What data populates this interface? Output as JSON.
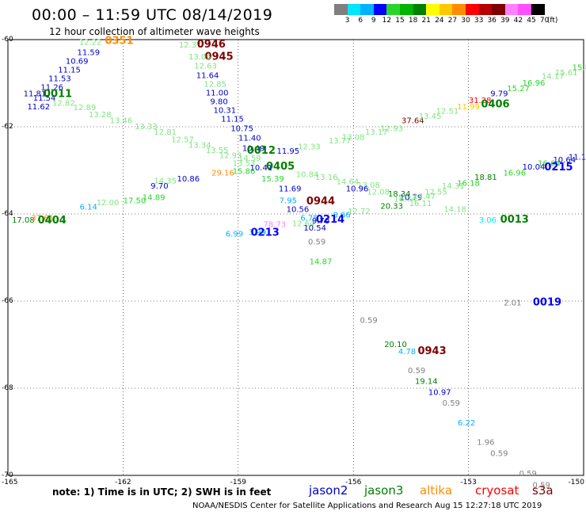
{
  "header": {
    "title": "00:00 – 11:59 UTC 08/14/2019",
    "subtitle": "12 hour collection of altimeter wave heights"
  },
  "legend": {
    "colors": [
      "#7f7f7f",
      "#00e5ff",
      "#00b2ff",
      "#0000ff",
      "#2bd42b",
      "#00b400",
      "#008000",
      "#ffff00",
      "#ffc800",
      "#ff8c00",
      "#ff0000",
      "#b40000",
      "#800000",
      "#ff80ff",
      "#ff4dff",
      "#000000"
    ],
    "labels": [
      "3",
      "6",
      "9",
      "12",
      "15",
      "18",
      "21",
      "24",
      "27",
      "30",
      "33",
      "36",
      "39",
      "42",
      "45",
      "70",
      "(ft)"
    ]
  },
  "axes": {
    "lat_labels": [
      "-60",
      "-62",
      "-64",
      "-66",
      "-68",
      "-70"
    ],
    "lon_labels": [
      "-165",
      "-162",
      "-159",
      "-156",
      "-153",
      "-150"
    ]
  },
  "chart_data": {
    "type": "scatter",
    "xlim": [
      -165,
      -150
    ],
    "ylim": [
      -70,
      -60
    ],
    "labels": [
      {
        "t": "0351",
        "lon": -162.1,
        "lat": -60.1,
        "c": "#ff8c00",
        "b": true
      },
      {
        "t": "12.22",
        "lon": -162.85,
        "lat": -60.12,
        "c": "#7fe57f"
      },
      {
        "t": "11.59",
        "lon": -162.9,
        "lat": -60.35,
        "c": "#0000cc"
      },
      {
        "t": "10.69",
        "lon": -163.2,
        "lat": -60.55,
        "c": "#0000cc"
      },
      {
        "t": "11.15",
        "lon": -163.4,
        "lat": -60.75,
        "c": "#0000cc"
      },
      {
        "t": "11.53",
        "lon": -163.65,
        "lat": -60.95,
        "c": "#0000cc"
      },
      {
        "t": "11.26",
        "lon": -163.85,
        "lat": -61.15,
        "c": "#0000cc"
      },
      {
        "t": "11.81",
        "lon": -164.3,
        "lat": -61.3,
        "c": "#0000cc"
      },
      {
        "t": "11.54",
        "lon": -164.05,
        "lat": -61.4,
        "c": "#0000cc"
      },
      {
        "t": "0011",
        "lon": -163.7,
        "lat": -61.32,
        "c": "#008000",
        "b": true
      },
      {
        "t": "11.62",
        "lon": -164.2,
        "lat": -61.6,
        "c": "#0000cc"
      },
      {
        "t": "12.82",
        "lon": -163.55,
        "lat": -61.52,
        "c": "#7fe57f"
      },
      {
        "t": "12.89",
        "lon": -163.0,
        "lat": -61.62,
        "c": "#7fe57f"
      },
      {
        "t": "13.28",
        "lon": -162.6,
        "lat": -61.78,
        "c": "#7fe57f"
      },
      {
        "t": "13.46",
        "lon": -162.05,
        "lat": -61.92,
        "c": "#7fe57f"
      },
      {
        "t": "13.33",
        "lon": -161.4,
        "lat": -62.05,
        "c": "#7fe57f"
      },
      {
        "t": "12.81",
        "lon": -160.9,
        "lat": -62.18,
        "c": "#7fe57f"
      },
      {
        "t": "12.57",
        "lon": -160.45,
        "lat": -62.35,
        "c": "#7fe57f"
      },
      {
        "t": "13.34",
        "lon": -160.0,
        "lat": -62.48,
        "c": "#7fe57f"
      },
      {
        "t": "13.55",
        "lon": -159.55,
        "lat": -62.6,
        "c": "#7fe57f"
      },
      {
        "t": "12.93",
        "lon": -159.2,
        "lat": -62.72,
        "c": "#7fe57f"
      },
      {
        "t": "14.59",
        "lon": -158.7,
        "lat": -62.78,
        "c": "#7fe57f"
      },
      {
        "t": "12.37",
        "lon": -160.25,
        "lat": -60.18,
        "c": "#7fe57f"
      },
      {
        "t": "0946",
        "lon": -159.7,
        "lat": -60.18,
        "c": "#800000",
        "b": true
      },
      {
        "t": "0945",
        "lon": -159.5,
        "lat": -60.46,
        "c": "#800000",
        "b": true
      },
      {
        "t": "13.05",
        "lon": -160.0,
        "lat": -60.45,
        "c": "#7fe57f"
      },
      {
        "t": "12.63",
        "lon": -159.85,
        "lat": -60.66,
        "c": "#7fe57f"
      },
      {
        "t": "11.64",
        "lon": -159.8,
        "lat": -60.88,
        "c": "#0000cc"
      },
      {
        "t": "12.85",
        "lon": -159.6,
        "lat": -61.08,
        "c": "#7fe57f"
      },
      {
        "t": "11.00",
        "lon": -159.55,
        "lat": -61.28,
        "c": "#0000cc"
      },
      {
        "t": "9.80",
        "lon": -159.5,
        "lat": -61.48,
        "c": "#0000cc"
      },
      {
        "t": "10.31",
        "lon": -159.35,
        "lat": -61.68,
        "c": "#0000cc"
      },
      {
        "t": "11.15",
        "lon": -159.15,
        "lat": -61.88,
        "c": "#0000cc"
      },
      {
        "t": "10.75",
        "lon": -158.9,
        "lat": -62.1,
        "c": "#0000cc"
      },
      {
        "t": "11.40",
        "lon": -158.7,
        "lat": -62.32,
        "c": "#0000cc"
      },
      {
        "t": "10.49",
        "lon": -158.6,
        "lat": -62.55,
        "c": "#0000cc"
      },
      {
        "t": "0012",
        "lon": -158.4,
        "lat": -62.62,
        "c": "#008000",
        "b": true
      },
      {
        "t": "11.95",
        "lon": -157.7,
        "lat": -62.62,
        "c": "#0000cc"
      },
      {
        "t": "12.33",
        "lon": -157.15,
        "lat": -62.52,
        "c": "#7fe57f"
      },
      {
        "t": "13.77",
        "lon": -156.35,
        "lat": -62.38,
        "c": "#7fe57f"
      },
      {
        "t": "13.08",
        "lon": -156.0,
        "lat": -62.3,
        "c": "#7fe57f"
      },
      {
        "t": "13.17",
        "lon": -155.4,
        "lat": -62.18,
        "c": "#7fe57f"
      },
      {
        "t": "12.93",
        "lon": -155.0,
        "lat": -62.1,
        "c": "#7fe57f"
      },
      {
        "t": "37.64",
        "lon": -154.45,
        "lat": -61.92,
        "c": "#800000"
      },
      {
        "t": "13.45",
        "lon": -154.0,
        "lat": -61.82,
        "c": "#7fe57f"
      },
      {
        "t": "12.51",
        "lon": -153.55,
        "lat": -61.7,
        "c": "#7fe57f"
      },
      {
        "t": "11.99",
        "lon": -153.0,
        "lat": -61.6,
        "c": "#ffc800"
      },
      {
        "t": "31.28",
        "lon": -152.7,
        "lat": -61.45,
        "c": "#ff0000"
      },
      {
        "t": "0406",
        "lon": -152.3,
        "lat": -61.55,
        "c": "#008000",
        "b": true
      },
      {
        "t": "9.79",
        "lon": -152.2,
        "lat": -61.3,
        "c": "#0000cc"
      },
      {
        "t": "15.27",
        "lon": -151.7,
        "lat": -61.18,
        "c": "#2bd42b"
      },
      {
        "t": "16.96",
        "lon": -151.3,
        "lat": -61.05,
        "c": "#2bd42b"
      },
      {
        "t": "14.17",
        "lon": -150.8,
        "lat": -60.9,
        "c": "#7fe57f"
      },
      {
        "t": "15.61",
        "lon": -150.45,
        "lat": -60.82,
        "c": "#7fe57f"
      },
      {
        "t": "15.80",
        "lon": -150.0,
        "lat": -60.7,
        "c": "#2bd42b"
      },
      {
        "t": "18",
        "lon": -149.7,
        "lat": -60.58,
        "c": "#2bd42b"
      },
      {
        "t": "13.53",
        "lon": -158.85,
        "lat": -62.9,
        "c": "#7fe57f"
      },
      {
        "t": "0405",
        "lon": -157.9,
        "lat": -62.98,
        "c": "#008000",
        "b": true
      },
      {
        "t": "10.41",
        "lon": -158.4,
        "lat": -63.0,
        "c": "#0000cc"
      },
      {
        "t": "15.86",
        "lon": -158.85,
        "lat": -63.08,
        "c": "#2bd42b"
      },
      {
        "t": "29.16",
        "lon": -159.4,
        "lat": -63.12,
        "c": "#ff8c00"
      },
      {
        "t": "15.39",
        "lon": -158.1,
        "lat": -63.25,
        "c": "#2bd42b"
      },
      {
        "t": "10.86",
        "lon": -160.3,
        "lat": -63.25,
        "c": "#0000cc"
      },
      {
        "t": "14.35",
        "lon": -160.9,
        "lat": -63.3,
        "c": "#7fe57f"
      },
      {
        "t": "9.70",
        "lon": -161.05,
        "lat": -63.42,
        "c": "#0000cc"
      },
      {
        "t": "10.84",
        "lon": -157.2,
        "lat": -63.15,
        "c": "#7fe57f"
      },
      {
        "t": "13.16",
        "lon": -156.7,
        "lat": -63.22,
        "c": "#7fe57f"
      },
      {
        "t": "14.64",
        "lon": -156.15,
        "lat": -63.32,
        "c": "#7fe57f"
      },
      {
        "t": "13.08",
        "lon": -155.6,
        "lat": -63.4,
        "c": "#7fe57f"
      },
      {
        "t": "11.69",
        "lon": -157.65,
        "lat": -63.48,
        "c": "#0000cc"
      },
      {
        "t": "10.96",
        "lon": -155.9,
        "lat": -63.48,
        "c": "#0000cc"
      },
      {
        "t": "12.08",
        "lon": -155.35,
        "lat": -63.55,
        "c": "#7fe57f"
      },
      {
        "t": "18.34",
        "lon": -154.8,
        "lat": -63.6,
        "c": "#008000"
      },
      {
        "t": "10.79",
        "lon": -154.5,
        "lat": -63.68,
        "c": "#0000cc"
      },
      {
        "t": "14.47",
        "lon": -154.15,
        "lat": -63.65,
        "c": "#7fe57f"
      },
      {
        "t": "12.55",
        "lon": -153.85,
        "lat": -63.55,
        "c": "#7fe57f"
      },
      {
        "t": "14.31",
        "lon": -153.4,
        "lat": -63.42,
        "c": "#7fe57f"
      },
      {
        "t": "16.18",
        "lon": -153.0,
        "lat": -63.35,
        "c": "#2bd42b"
      },
      {
        "t": "18.81",
        "lon": -152.55,
        "lat": -63.22,
        "c": "#008000"
      },
      {
        "t": "16.96",
        "lon": -151.8,
        "lat": -63.12,
        "c": "#2bd42b"
      },
      {
        "t": "10.04",
        "lon": -151.3,
        "lat": -62.98,
        "c": "#0000cc"
      },
      {
        "t": "16.64",
        "lon": -150.9,
        "lat": -62.9,
        "c": "#2bd42b"
      },
      {
        "t": "10.64",
        "lon": -150.5,
        "lat": -62.82,
        "c": "#0000cc"
      },
      {
        "t": "11.17",
        "lon": -150.1,
        "lat": -62.75,
        "c": "#0000cc"
      },
      {
        "t": "11",
        "lon": -149.7,
        "lat": -62.6,
        "c": "#0000cc"
      },
      {
        "t": "0215",
        "lon": -150.65,
        "lat": -63.0,
        "c": "#0000ff",
        "b": true
      },
      {
        "t": "7.95",
        "lon": -157.7,
        "lat": -63.75,
        "c": "#00b2ff"
      },
      {
        "t": "0944",
        "lon": -156.85,
        "lat": -63.78,
        "c": "#800000",
        "b": true
      },
      {
        "t": "20.33",
        "lon": -155.0,
        "lat": -63.88,
        "c": "#008000"
      },
      {
        "t": "16.74",
        "lon": -154.65,
        "lat": -63.72,
        "c": "#7fe57f"
      },
      {
        "t": "16.11",
        "lon": -154.25,
        "lat": -63.82,
        "c": "#7fe57f"
      },
      {
        "t": "14.18",
        "lon": -153.35,
        "lat": -63.95,
        "c": "#7fe57f"
      },
      {
        "t": "10.56",
        "lon": -157.45,
        "lat": -63.95,
        "c": "#0000cc"
      },
      {
        "t": "8.66",
        "lon": -156.3,
        "lat": -64.08,
        "c": "#00b2ff"
      },
      {
        "t": "12.72",
        "lon": -155.85,
        "lat": -64.0,
        "c": "#7fe57f"
      },
      {
        "t": "6.75",
        "lon": -157.15,
        "lat": -64.15,
        "c": "#00b2ff"
      },
      {
        "t": "12.64",
        "lon": -157.3,
        "lat": -64.28,
        "c": "#7fe57f"
      },
      {
        "t": "9.70",
        "lon": -156.85,
        "lat": -64.22,
        "c": "#0000cc"
      },
      {
        "t": "0214",
        "lon": -156.6,
        "lat": -64.2,
        "c": "#0000ff",
        "b": true
      },
      {
        "t": "10.54",
        "lon": -157.0,
        "lat": -64.38,
        "c": "#0000cc"
      },
      {
        "t": "78.73",
        "lon": -158.05,
        "lat": -64.3,
        "c": "#ff80ff"
      },
      {
        "t": "3.99",
        "lon": -158.5,
        "lat": -64.48,
        "c": "#00b2ff"
      },
      {
        "t": "0213",
        "lon": -158.3,
        "lat": -64.5,
        "c": "#0000ff",
        "b": true
      },
      {
        "t": "6.99",
        "lon": -159.1,
        "lat": -64.52,
        "c": "#00b2ff"
      },
      {
        "t": "0.59",
        "lon": -156.95,
        "lat": -64.7,
        "c": "#7f7f7f"
      },
      {
        "t": "14.87",
        "lon": -156.85,
        "lat": -65.15,
        "c": "#2bd42b"
      },
      {
        "t": "6.14",
        "lon": -162.9,
        "lat": -63.9,
        "c": "#00b2ff"
      },
      {
        "t": "12.00",
        "lon": -162.4,
        "lat": -63.8,
        "c": "#7fe57f"
      },
      {
        "t": "17.50",
        "lon": -161.7,
        "lat": -63.75,
        "c": "#2bd42b"
      },
      {
        "t": "14.89",
        "lon": -161.2,
        "lat": -63.68,
        "c": "#2bd42b"
      },
      {
        "t": "17.08",
        "lon": -164.6,
        "lat": -64.2,
        "c": "#008000"
      },
      {
        "t": "37.61",
        "lon": -164.1,
        "lat": -64.15,
        "c": "#ff8c00"
      },
      {
        "t": "0404",
        "lon": -163.85,
        "lat": -64.22,
        "c": "#008000",
        "b": true
      },
      {
        "t": "3.06",
        "lon": -152.5,
        "lat": -64.2,
        "c": "#00e5ff"
      },
      {
        "t": "0013",
        "lon": -151.8,
        "lat": -64.2,
        "c": "#008000",
        "b": true
      },
      {
        "t": "2.01",
        "lon": -151.85,
        "lat": -66.1,
        "c": "#7f7f7f"
      },
      {
        "t": "0019",
        "lon": -150.95,
        "lat": -66.1,
        "c": "#0000ff",
        "b": true
      },
      {
        "t": "0.59",
        "lon": -155.6,
        "lat": -66.5,
        "c": "#7f7f7f"
      },
      {
        "t": "20.10",
        "lon": -154.9,
        "lat": -67.05,
        "c": "#008000"
      },
      {
        "t": "4.78",
        "lon": -154.6,
        "lat": -67.22,
        "c": "#00b2ff"
      },
      {
        "t": "0943",
        "lon": -153.95,
        "lat": -67.22,
        "c": "#800000",
        "b": true
      },
      {
        "t": "0.59",
        "lon": -154.35,
        "lat": -67.65,
        "c": "#7f7f7f"
      },
      {
        "t": "19.14",
        "lon": -154.1,
        "lat": -67.9,
        "c": "#008000"
      },
      {
        "t": "10.97",
        "lon": -153.75,
        "lat": -68.15,
        "c": "#0000cc"
      },
      {
        "t": "0.59",
        "lon": -153.45,
        "lat": -68.4,
        "c": "#7f7f7f"
      },
      {
        "t": "6.22",
        "lon": -153.05,
        "lat": -68.85,
        "c": "#00b2ff"
      },
      {
        "t": "1.96",
        "lon": -152.55,
        "lat": -69.3,
        "c": "#7f7f7f"
      },
      {
        "t": "0.59",
        "lon": -152.2,
        "lat": -69.55,
        "c": "#7f7f7f"
      },
      {
        "t": "0.59",
        "lon": -151.45,
        "lat": -70.02,
        "c": "#7f7f7f"
      },
      {
        "t": "0.59",
        "lon": -151.1,
        "lat": -70.28,
        "c": "#7f7f7f"
      }
    ]
  },
  "note": "note: 1) Time is in UTC; 2) SWH is in feet",
  "satellites": [
    {
      "name": "jason2",
      "color": "#0000cc"
    },
    {
      "name": "jason3",
      "color": "#008000"
    },
    {
      "name": "altika",
      "color": "#ff8c00"
    },
    {
      "name": "cryosat",
      "color": "#ff0000"
    },
    {
      "name": "s3a",
      "color": "#800000"
    }
  ],
  "footer": "NOAA/NESDIS Center for Satellite Applications and Research    Aug 15 12:27:18 UTC 2019"
}
